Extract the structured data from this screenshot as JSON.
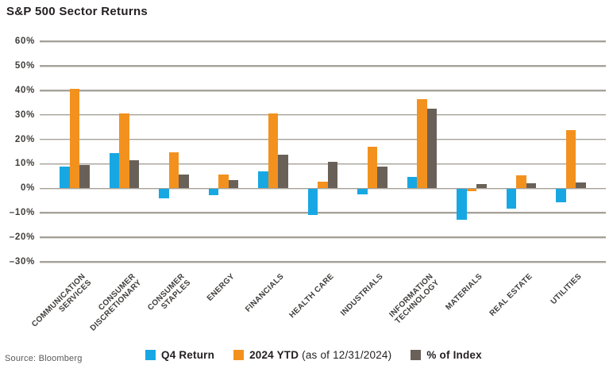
{
  "title": "S&P 500 Sector Returns",
  "source": "Source: Bloomberg",
  "legend": [
    {
      "label": "Q4 Return",
      "suffix": ""
    },
    {
      "label": "2024 YTD",
      "suffix": " (as of 12/31/2024)"
    },
    {
      "label": "% of Index",
      "suffix": ""
    }
  ],
  "colors": {
    "q4_return": "#17a8e3",
    "ytd_2024": "#f3911e",
    "pct_of_index": "#696158",
    "gridline": "#a5a19a",
    "text": "#231f20"
  },
  "chart_data": {
    "type": "bar",
    "title": "S&P 500 Sector Returns",
    "categories": [
      "COMMUNICATION SERVICES",
      "CONSUMER DISCRETIONARY",
      "CONSUMER STAPLES",
      "ENERGY",
      "FINANCIALS",
      "HEALTH CARE",
      "INDUSTRIALS",
      "INFORMATION TECHNOLOGY",
      "MATERIALS",
      "REAL ESTATE",
      "UTILITIES"
    ],
    "category_lines": [
      [
        "COMMUNICATION",
        "SERVICES"
      ],
      [
        "CONSUMER",
        "DISCRETIONARY"
      ],
      [
        "CONSUMER",
        "STAPLES"
      ],
      [
        "ENERGY"
      ],
      [
        "FINANCIALS"
      ],
      [
        "HEALTH CARE"
      ],
      [
        "INDUSTRIALS"
      ],
      [
        "INFORMATION",
        "TECHNOLOGY"
      ],
      [
        "MATERIALS"
      ],
      [
        "REAL ESTATE"
      ],
      [
        "UTILITIES"
      ]
    ],
    "series": [
      {
        "name": "Q4 Return",
        "color": "#17a8e3",
        "values": [
          8.9,
          14.5,
          -3.7,
          -2.5,
          7.0,
          -10.5,
          -2.3,
          4.8,
          -12.6,
          -8.2,
          -5.6
        ]
      },
      {
        "name": "2024 YTD (as of 12/31/2024)",
        "color": "#f3911e",
        "values": [
          40.5,
          30.4,
          14.6,
          5.7,
          30.6,
          2.7,
          17.0,
          36.5,
          -1.0,
          5.4,
          23.7
        ]
      },
      {
        "name": "% of Index",
        "color": "#696158",
        "values": [
          9.4,
          11.3,
          5.7,
          3.3,
          13.6,
          10.8,
          8.7,
          32.5,
          1.8,
          2.1,
          2.3
        ]
      }
    ],
    "ylabel": "",
    "xlabel": "",
    "ylim": [
      -30,
      60
    ],
    "yticks": [
      60,
      50,
      40,
      30,
      20,
      10,
      0,
      -10,
      -20,
      -30
    ],
    "ytick_format": "percent",
    "grid": true,
    "legend_position": "bottom"
  }
}
